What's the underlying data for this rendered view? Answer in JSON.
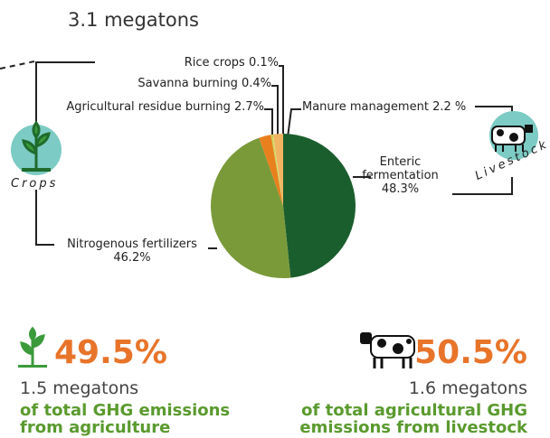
{
  "chart_data": {
    "type": "pie",
    "title": "3.1 megatons",
    "categories": [
      "Enteric fermentation",
      "Nitrogenous fertilizers",
      "Agricultural residue burning",
      "Savanna burning",
      "Rice crops",
      "Manure management"
    ],
    "values": [
      48.3,
      46.2,
      2.7,
      0.4,
      0.1,
      2.2
    ],
    "value_labels": [
      "48.3%",
      "46.2%",
      "2.7%",
      "0.4%",
      "0.1%",
      "2.2 %"
    ],
    "colors": [
      "#1b5e2e",
      "#7a9a3a",
      "#e8801e",
      "#c8d85a",
      "#f2d66a",
      "#f0b462"
    ]
  },
  "icons": {
    "crops": "Crops",
    "livestock": "Livestock"
  },
  "summary": [
    {
      "share": "49.5%",
      "amount": "1.5 megatons",
      "description": "of total GHG emissions from agriculture"
    },
    {
      "share": "50.5%",
      "amount": "1.6 megatons",
      "description": "of total agricultural GHG emissions from livestock"
    }
  ]
}
